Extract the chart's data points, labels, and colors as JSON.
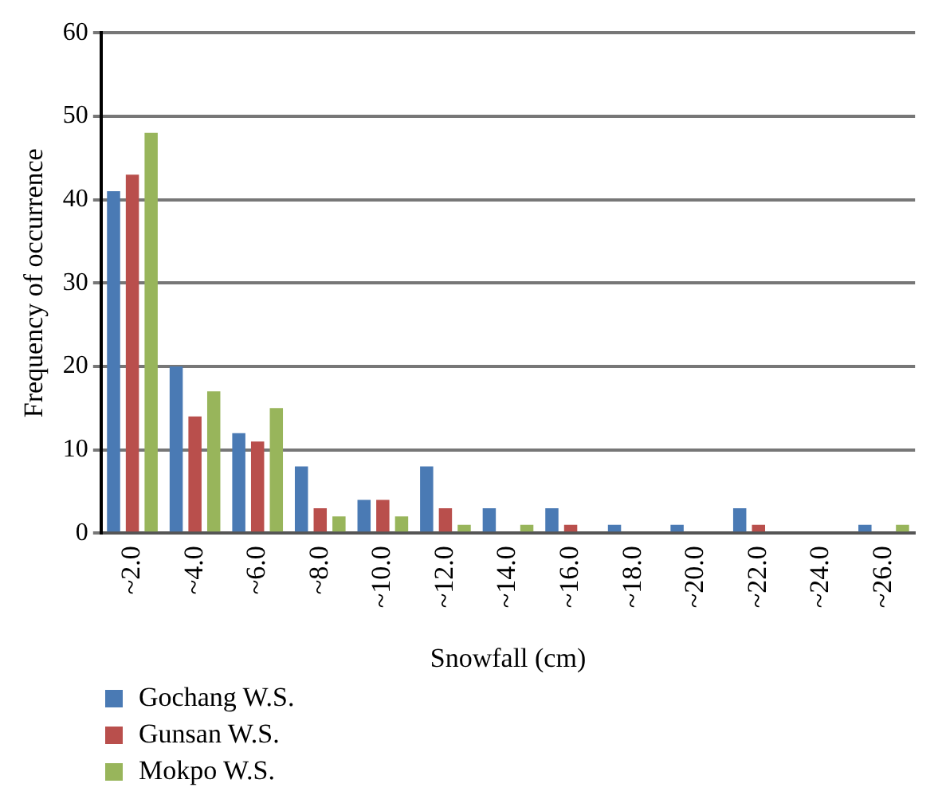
{
  "chart_data": {
    "type": "bar",
    "xlabel": "Snowfall (cm)",
    "ylabel": "Frequency of occurrence",
    "categories": [
      "~2.0",
      "~4.0",
      "~6.0",
      "~8.0",
      "~10.0",
      "~12.0",
      "~14.0",
      "~16.0",
      "~18.0",
      "~20.0",
      "~22.0",
      "~24.0",
      "~26.0"
    ],
    "series": [
      {
        "name": "Gochang W.S.",
        "color": "#4a7ab4",
        "values": [
          41,
          20,
          12,
          8,
          4,
          8,
          3,
          3,
          1,
          1,
          3,
          0,
          1
        ]
      },
      {
        "name": "Gunsan W.S.",
        "color": "#b94f4c",
        "values": [
          43,
          14,
          11,
          3,
          4,
          3,
          0,
          1,
          0,
          0,
          1,
          0,
          0
        ]
      },
      {
        "name": "Mokpo W.S.",
        "color": "#98b55b",
        "values": [
          48,
          17,
          15,
          2,
          2,
          1,
          1,
          0,
          0,
          0,
          0,
          0,
          1
        ]
      }
    ],
    "ylim": [
      0,
      60
    ],
    "yticks": [
      0,
      10,
      20,
      30,
      40,
      50,
      60
    ],
    "grid": "y",
    "legend": "bottom left"
  }
}
